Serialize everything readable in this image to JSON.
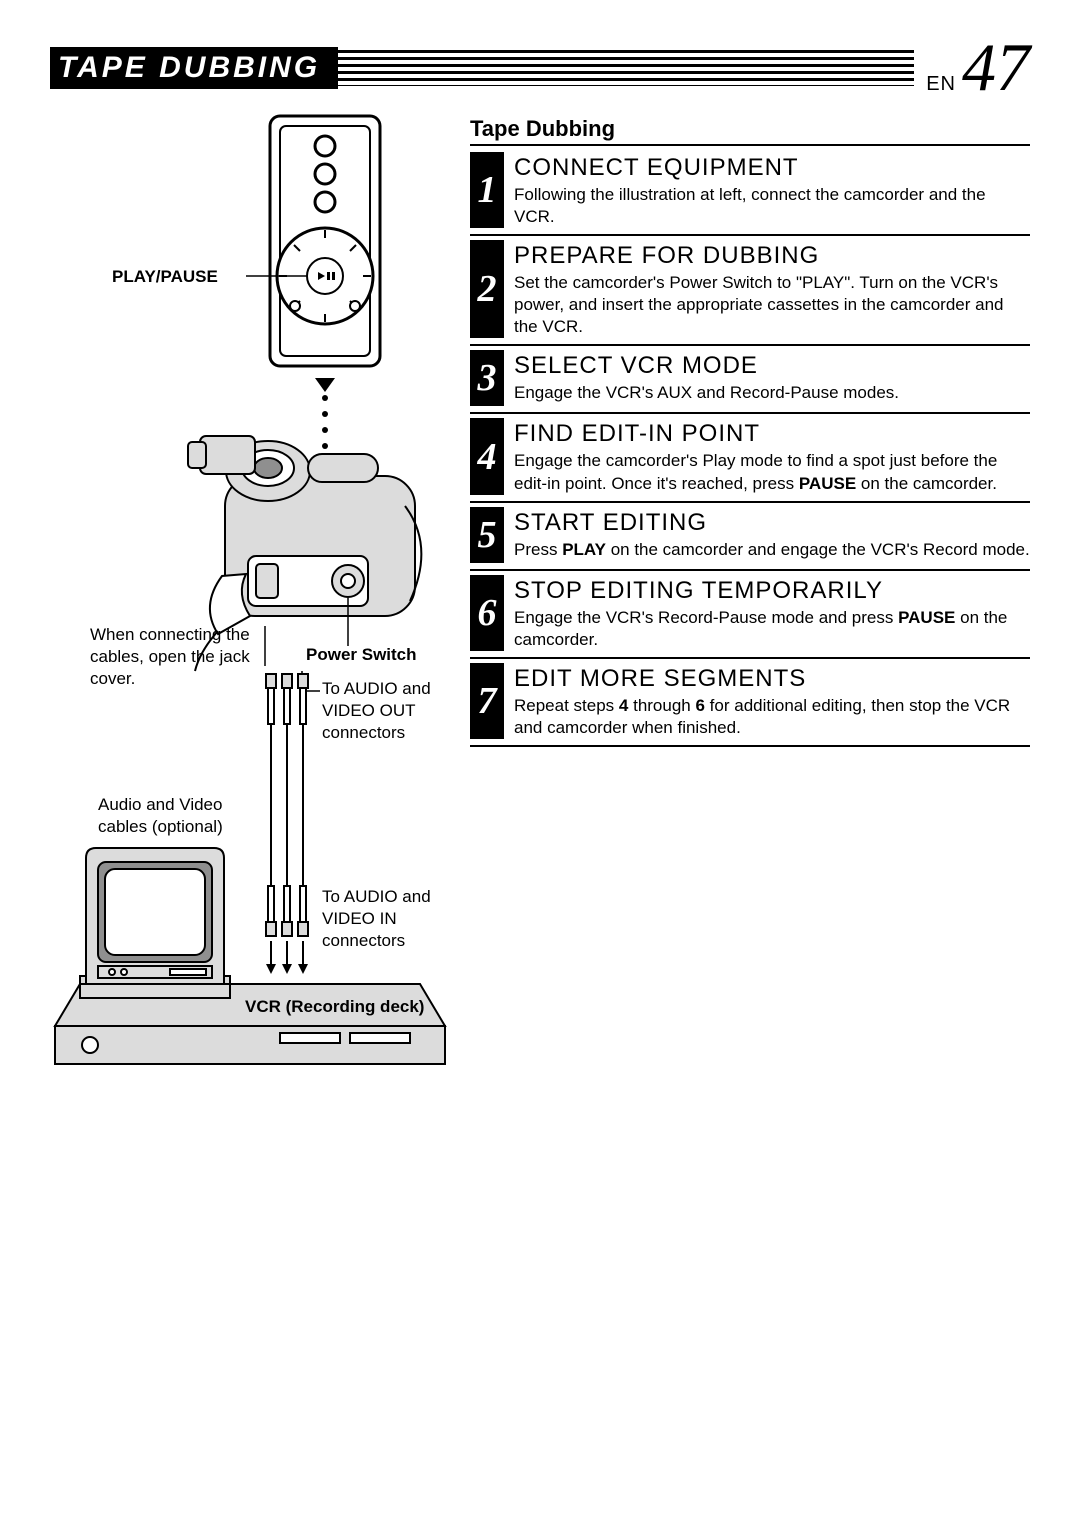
{
  "header": {
    "title": "TAPE DUBBING",
    "lang": "EN",
    "page_number": "47"
  },
  "section_title": "Tape Dubbing",
  "steps": [
    {
      "num": "1",
      "title": "CONNECT EQUIPMENT",
      "html": "Following the illustration at left, connect the camcorder and the VCR."
    },
    {
      "num": "2",
      "title": "PREPARE FOR DUBBING",
      "html": "Set the camcorder's Power Switch to \"PLAY\". Turn on the VCR's power, and insert the appropriate cassettes in the camcorder and the VCR."
    },
    {
      "num": "3",
      "title": "SELECT VCR MODE",
      "html": "Engage the VCR's AUX and Record-Pause modes."
    },
    {
      "num": "4",
      "title": "FIND EDIT-IN POINT",
      "html": "Engage the camcorder's Play mode to find a spot just before the edit-in point. Once it's reached, press <b>PAUSE</b> on the camcorder."
    },
    {
      "num": "5",
      "title": "START EDITING",
      "html": "Press <b>PLAY</b> on the camcorder and engage the VCR's Record mode."
    },
    {
      "num": "6",
      "title": "STOP EDITING TEMPORARILY",
      "html": "Engage the VCR's Record-Pause mode and press <b>PAUSE</b> on the camcorder."
    },
    {
      "num": "7",
      "title": "EDIT MORE SEGMENTS",
      "html": "Repeat steps <b>4</b> through <b>6</b> for additional editing, then stop the VCR and camcorder when finished."
    }
  ],
  "diagram": {
    "play_pause_label": "PLAY/PAUSE",
    "jack_cover_text": "When connecting the cables, open the jack cover.",
    "power_switch_label": "Power Switch",
    "audio_video_out_text": "To AUDIO and VIDEO OUT connectors",
    "audio_video_cables_text": "Audio and Video cables (optional)",
    "audio_video_in_text": "To AUDIO and VIDEO IN connectors",
    "vcr_label": "VCR (Recording deck)",
    "colors": {
      "stroke": "#000000",
      "fill_light": "#dcdcdc",
      "fill_white": "#ffffff",
      "fill_dark": "#8f8f8f"
    }
  }
}
